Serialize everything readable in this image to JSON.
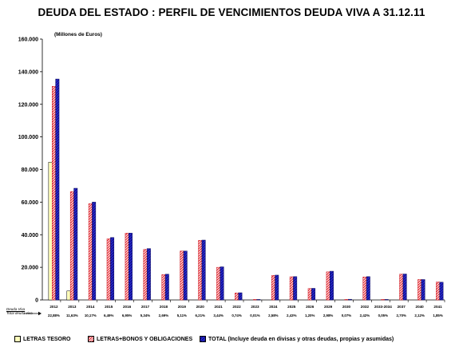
{
  "title": "DEUDA DEL ESTADO : PERFIL DE VENCIMIENTOS DEUDA VIVA A 31.12.11",
  "unit_label": "(Millones de Euros)",
  "pct_header": [
    "Deuda Viva",
    "Total deuda viva"
  ],
  "colors": {
    "tesoro_fill": "#ffffbb",
    "letras_stripe": "#e0101a",
    "total_fill": "#1a1aa8",
    "total_stripe": "#0c0c78"
  },
  "chart_data": {
    "type": "bar",
    "ylim": [
      0,
      160000
    ],
    "yticks": [
      "0",
      "20.000",
      "40.000",
      "60.000",
      "80.000",
      "100.000",
      "120.000",
      "140.000",
      "160.000"
    ],
    "grid": false,
    "legend_position": "bottom",
    "categories": [
      "2012",
      "2013",
      "2014",
      "2015",
      "2016",
      "2017",
      "2018",
      "2019",
      "2020",
      "2021",
      "2022",
      "2023",
      "2024",
      "2025",
      "2026",
      "2029",
      "2030",
      "2032",
      "2033-2034",
      "2037",
      "2040",
      "2041"
    ],
    "percentages": [
      "22,88%",
      "11,63%",
      "10,17%",
      "6,49%",
      "6,95%",
      "5,34%",
      "2,69%",
      "5,11%",
      "6,21%",
      "3,44%",
      "0,74%",
      "0,01%",
      "2,58%",
      "2,43%",
      "1,20%",
      "2,98%",
      "0,07%",
      "2,42%",
      "0,05%",
      "2,70%",
      "2,12%",
      "1,85%"
    ],
    "series": [
      {
        "name": "LETRAS TESORO",
        "values": [
          84500,
          5500,
          0,
          0,
          0,
          0,
          0,
          0,
          0,
          0,
          0,
          0,
          0,
          0,
          0,
          0,
          0,
          0,
          0,
          0,
          0,
          0
        ]
      },
      {
        "name": "LETRAS+BONOS Y OBLIGACIONES",
        "values": [
          131000,
          66500,
          59000,
          37500,
          41000,
          31000,
          15500,
          30000,
          36500,
          20000,
          4300,
          50,
          15000,
          14200,
          7000,
          17200,
          300,
          14100,
          250,
          15800,
          12500,
          11000
        ]
      },
      {
        "name": "TOTAL (Incluye deuda en divisas y otras deudas, propias y asumidas)",
        "values": [
          135500,
          68500,
          60000,
          38300,
          41000,
          31500,
          15800,
          30000,
          36700,
          20300,
          4400,
          60,
          15200,
          14300,
          7100,
          17600,
          400,
          14300,
          300,
          15900,
          12500,
          10900
        ]
      }
    ]
  }
}
